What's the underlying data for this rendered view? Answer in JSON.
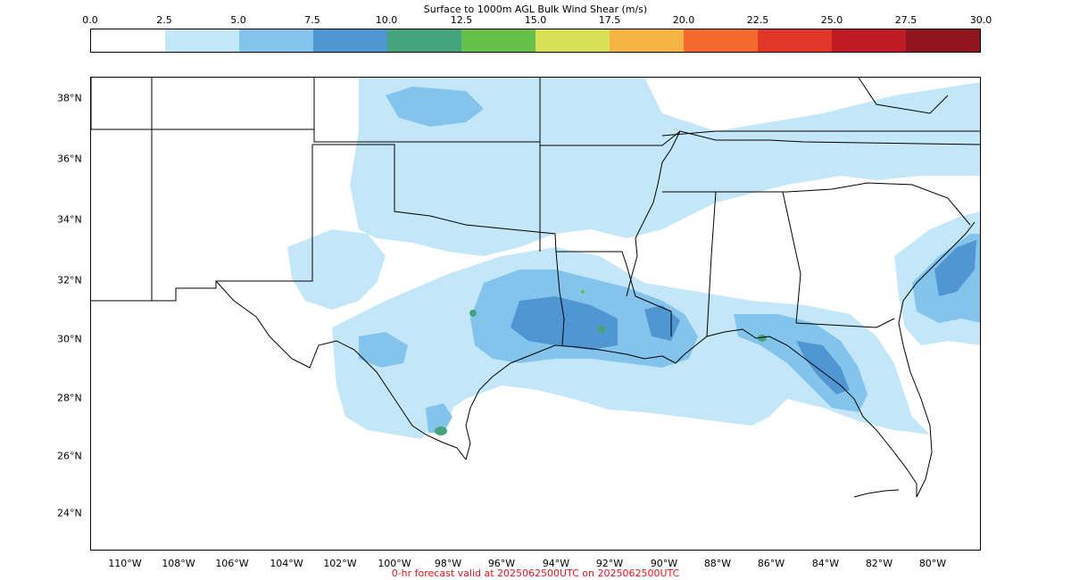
{
  "title": "Surface to 1000m AGL Bulk Wind Shear (m/s)",
  "colorbar": {
    "ticks": [
      "0.0",
      "2.5",
      "5.0",
      "7.5",
      "10.0",
      "12.5",
      "15.0",
      "17.5",
      "20.0",
      "22.5",
      "25.0",
      "27.5",
      "30.0"
    ],
    "colors": [
      "#ffffff",
      "#c3e7f8",
      "#84c4ec",
      "#5096d2",
      "#44a47d",
      "#66c14a",
      "#d7e057",
      "#f7b446",
      "#f36a2c",
      "#e03729",
      "#bf1b24",
      "#91151d"
    ]
  },
  "map": {
    "lat_labels": [
      "38°N",
      "36°N",
      "34°N",
      "32°N",
      "30°N",
      "28°N",
      "26°N",
      "24°N"
    ],
    "lon_labels": [
      "110°W",
      "108°W",
      "106°W",
      "104°W",
      "102°W",
      "100°W",
      "98°W",
      "96°W",
      "94°W",
      "92°W",
      "90°W",
      "88°W",
      "86°W",
      "84°W",
      "82°W",
      "80°W"
    ]
  },
  "footer": "0-hr forecast valid at 2025062500UTC on 2025062500UTC"
}
